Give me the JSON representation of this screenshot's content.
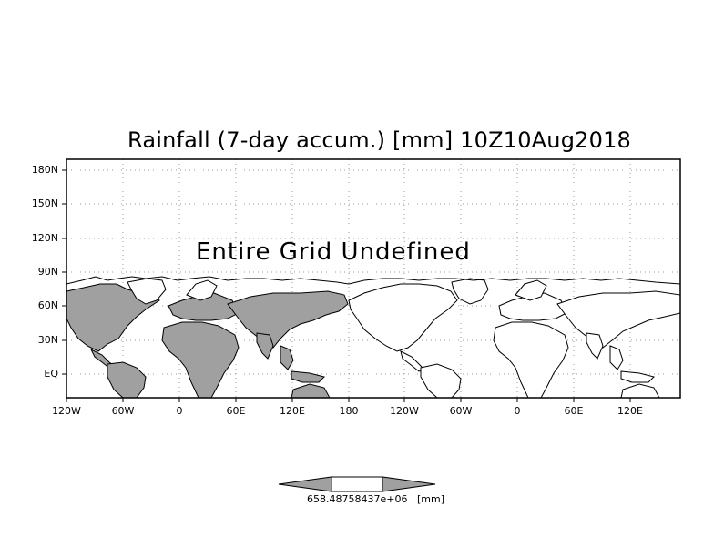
{
  "title": "Rainfall (7-day accum.) [mm] 10Z10Aug2018",
  "overlay_text": "Entire Grid Undefined",
  "y_axis": {
    "ticks": [
      "180N",
      "150N",
      "120N",
      "90N",
      "60N",
      "30N",
      "EQ"
    ],
    "tick_values": [
      180,
      150,
      120,
      90,
      60,
      30,
      0
    ]
  },
  "x_axis": {
    "ticks": [
      "120W",
      "60W",
      "0",
      "60E",
      "120E",
      "180",
      "120W",
      "60W",
      "0",
      "60E",
      "120E"
    ]
  },
  "colorbar": {
    "left_value": "658.48758437e+06",
    "unit": "[mm]"
  },
  "colors": {
    "land": "#a0a0a0",
    "frame": "#000000",
    "grid": "#999999"
  }
}
